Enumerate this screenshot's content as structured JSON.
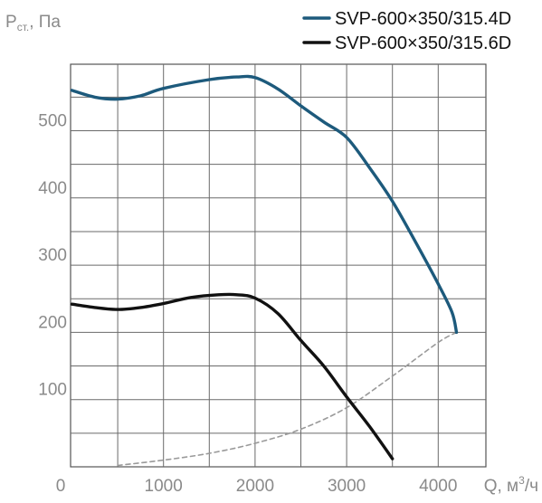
{
  "chart_data": {
    "type": "line",
    "ylabel": {
      "main": "P",
      "sub": "ст.",
      "unit": ", Па"
    },
    "xlabel": {
      "main": "Q, м",
      "sup": "3",
      "unit": "/ч"
    },
    "x_ticks": [
      "0",
      "1000",
      "2000",
      "3000",
      "4000"
    ],
    "y_ticks": [
      "100",
      "200",
      "300",
      "400",
      "500"
    ],
    "xlim": [
      0,
      4500
    ],
    "ylim": [
      0,
      600
    ],
    "grid": true,
    "legend_position": "top-right",
    "series": [
      {
        "name": "SVP-600×350/315.4D",
        "color": "#1d5a7c",
        "style": "solid",
        "points": [
          [
            0,
            560
          ],
          [
            250,
            550
          ],
          [
            500,
            547
          ],
          [
            750,
            552
          ],
          [
            1000,
            563
          ],
          [
            1500,
            576
          ],
          [
            1800,
            580
          ],
          [
            2000,
            579
          ],
          [
            2250,
            562
          ],
          [
            2500,
            537
          ],
          [
            2750,
            513
          ],
          [
            3000,
            490
          ],
          [
            3250,
            445
          ],
          [
            3500,
            395
          ],
          [
            3750,
            335
          ],
          [
            4000,
            272
          ],
          [
            4150,
            230
          ],
          [
            4200,
            200
          ]
        ]
      },
      {
        "name": "SVP-600×350/315.6D",
        "color": "#111111",
        "style": "solid",
        "points": [
          [
            0,
            242
          ],
          [
            250,
            237
          ],
          [
            500,
            234
          ],
          [
            750,
            237
          ],
          [
            1000,
            243
          ],
          [
            1300,
            252
          ],
          [
            1600,
            256
          ],
          [
            1800,
            256
          ],
          [
            2000,
            251
          ],
          [
            2250,
            228
          ],
          [
            2500,
            188
          ],
          [
            2750,
            150
          ],
          [
            3000,
            104
          ],
          [
            3250,
            60
          ],
          [
            3500,
            12
          ]
        ]
      },
      {
        "color": "#9a9a9a",
        "style": "dashed",
        "points": [
          [
            500,
            2
          ],
          [
            1000,
            10
          ],
          [
            1500,
            20
          ],
          [
            2000,
            35
          ],
          [
            2500,
            56
          ],
          [
            3000,
            88
          ],
          [
            3500,
            135
          ],
          [
            4000,
            185
          ],
          [
            4200,
            200
          ]
        ]
      }
    ]
  }
}
